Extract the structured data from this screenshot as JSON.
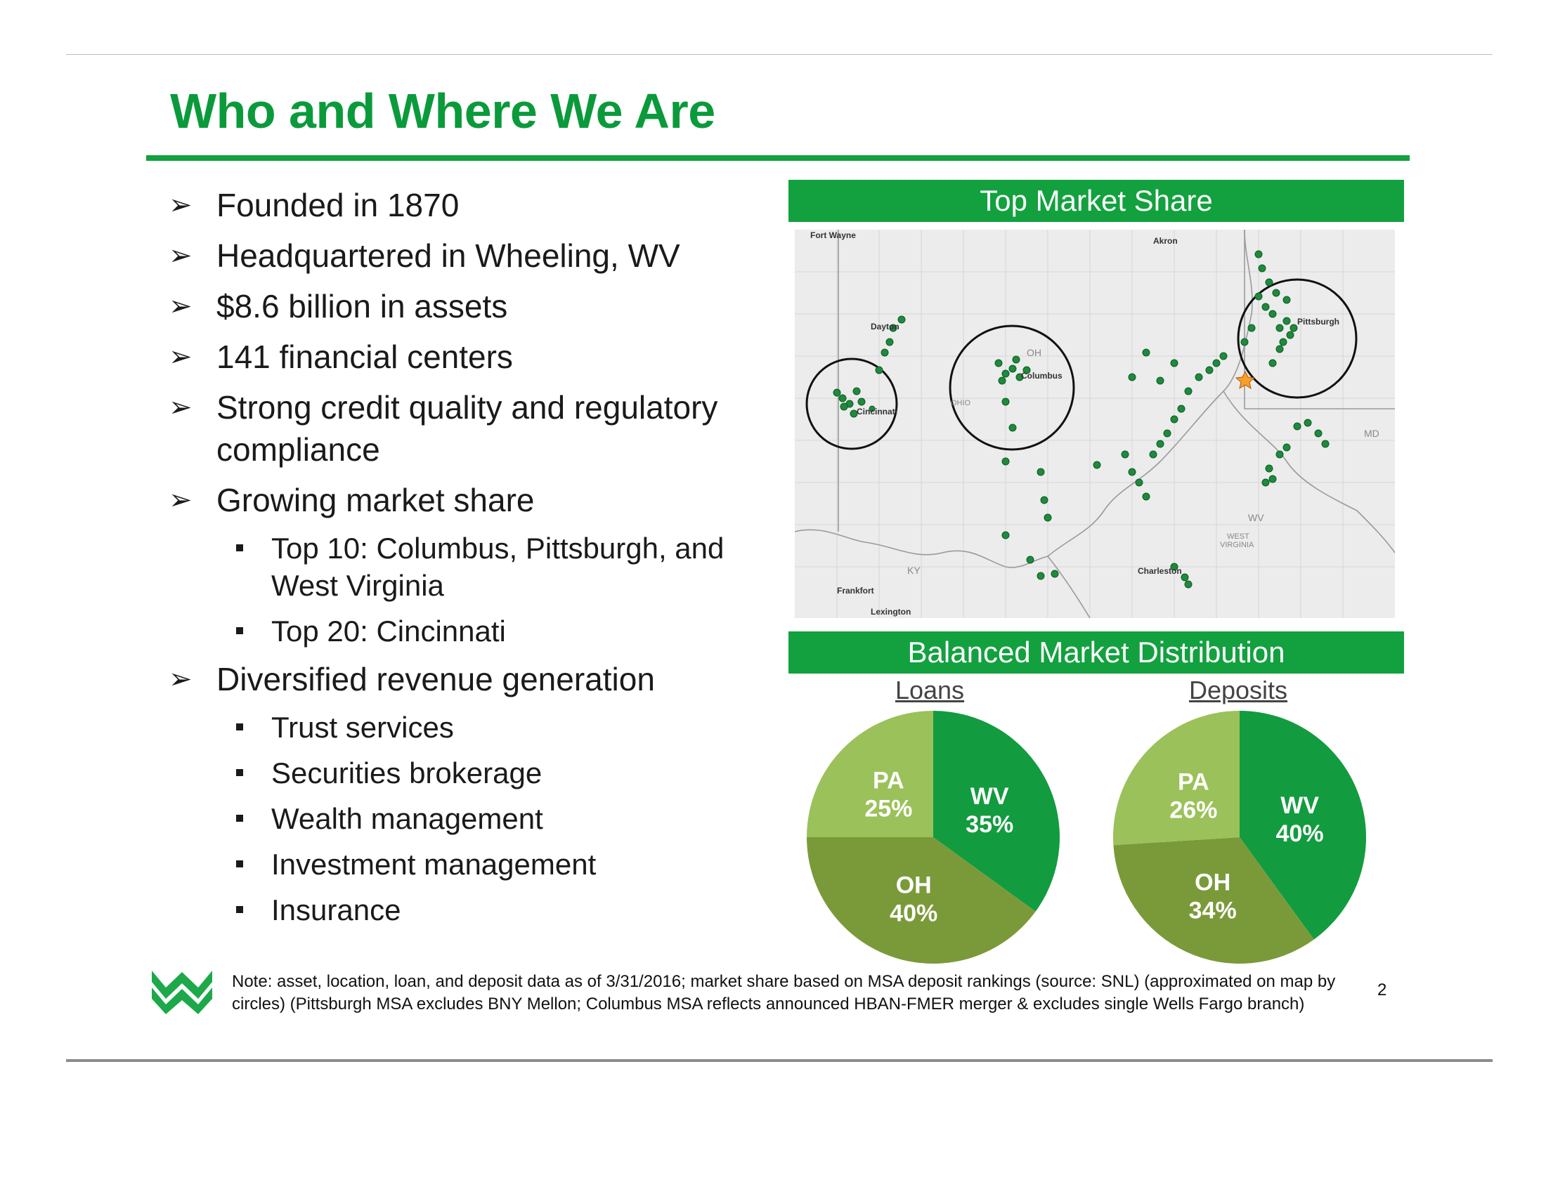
{
  "title": "Who and Where We Are",
  "bullets": [
    {
      "text": "Founded in 1870"
    },
    {
      "text": "Headquartered in Wheeling, WV"
    },
    {
      "text": "$8.6 billion in assets"
    },
    {
      "text": "141 financial centers"
    },
    {
      "text": "Strong credit quality and regulatory compliance"
    },
    {
      "text": "Growing market share",
      "sub": [
        "Top 10: Columbus, Pittsburgh, and West Virginia",
        "Top 20: Cincinnati"
      ]
    },
    {
      "text": "Diversified revenue generation",
      "sub": [
        "Trust services",
        "Securities brokerage",
        "Wealth management",
        "Investment management",
        "Insurance"
      ]
    }
  ],
  "map_section": {
    "header": "Top Market Share",
    "cities": [
      "Fort Wayne",
      "Akron",
      "Pittsburgh",
      "Columbus",
      "Dayton",
      "Cincinnati",
      "Charleston",
      "Frankfort",
      "Lexington"
    ],
    "states": [
      "OH",
      "WV",
      "KY",
      "MD"
    ],
    "subtext": [
      "WEST",
      "VIRGINIA",
      "OHIO"
    ]
  },
  "distribution": {
    "header": "Balanced Market Distribution",
    "loans_label": "Loans",
    "deposits_label": "Deposits"
  },
  "chart_data": [
    {
      "type": "pie",
      "title": "Loans",
      "categories": [
        "WV",
        "OH",
        "PA"
      ],
      "values": [
        35,
        40,
        25
      ],
      "labels": [
        "35%",
        "40%",
        "25%"
      ],
      "colors": [
        "#139b3f",
        "#7a9a3a",
        "#9bc15a"
      ]
    },
    {
      "type": "pie",
      "title": "Deposits",
      "categories": [
        "WV",
        "OH",
        "PA"
      ],
      "values": [
        40,
        34,
        26
      ],
      "labels": [
        "40%",
        "34%",
        "26%"
      ],
      "colors": [
        "#139b3f",
        "#7a9a3a",
        "#9bc15a"
      ]
    }
  ],
  "footnote": "Note: asset, location, loan, and deposit data as of 3/31/2016; market share based on MSA deposit rankings (source: SNL) (approximated on map by circles) (Pittsburgh MSA excludes BNY Mellon; Columbus MSA reflects announced HBAN-FMER merger & excludes single Wells Fargo branch)",
  "page_number": "2",
  "colors": {
    "accent": "#12a13e",
    "title": "#0b9a3b"
  }
}
